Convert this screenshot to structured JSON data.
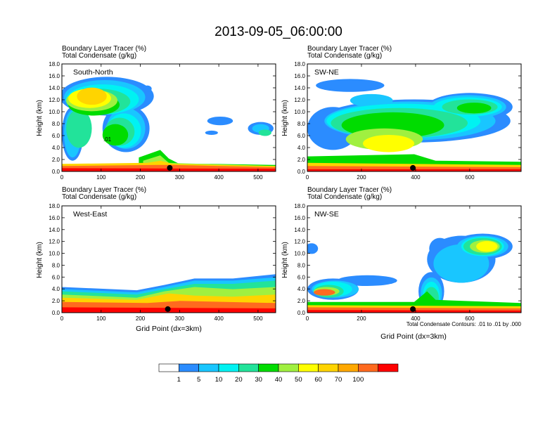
{
  "title": "2013-09-05_06:00:00",
  "colors": {
    "levels": [
      "#ffffff",
      "#2b8cff",
      "#19c6ff",
      "#00f2f2",
      "#22e39a",
      "#00dc00",
      "#a0f040",
      "#ffff00",
      "#ffd400",
      "#ffa800",
      "#ff6a1f",
      "#ff0000"
    ],
    "black": "#000000"
  },
  "chart_data": [
    {
      "type": "heatmap",
      "label": "South-North",
      "subtitle_1": "Boundary Layer Tracer   (%)",
      "subtitle_2": "Total Condensate   (g/kg)",
      "ylabel": "Height (km)",
      "xlabel": "",
      "xlim": [
        0,
        545
      ],
      "ylim": [
        0,
        18
      ],
      "xticks": [
        0,
        100,
        200,
        300,
        400,
        500
      ],
      "yticks": [
        "0.0",
        "2.0",
        "4.0",
        "6.0",
        "8.0",
        "10.0",
        "12.0",
        "14.0",
        "16.0",
        "18.0"
      ],
      "contour_label": ".01",
      "marker": [
        275,
        0.6
      ]
    },
    {
      "type": "heatmap",
      "label": "SW-NE",
      "subtitle_1": "Boundary Layer Tracer   (%)",
      "subtitle_2": "Total Condensate   (g/kg)",
      "ylabel": "Height (km)",
      "xlabel": "",
      "xlim": [
        0,
        790
      ],
      "ylim": [
        0,
        18
      ],
      "xticks": [
        0,
        200,
        400,
        600
      ],
      "yticks": [
        "0.0",
        "2.0",
        "4.0",
        "6.0",
        "8.0",
        "10.0",
        "12.0",
        "14.0",
        "16.0",
        "18.0"
      ],
      "marker": [
        390,
        0.6
      ]
    },
    {
      "type": "heatmap",
      "label": "West-East",
      "subtitle_1": "Boundary Layer Tracer   (%)",
      "subtitle_2": "Total Condensate   (g/kg)",
      "ylabel": "Height (km)",
      "xlabel": "Grid Point (dx=3km)",
      "xlim": [
        0,
        545
      ],
      "ylim": [
        0,
        18
      ],
      "xticks": [
        0,
        100,
        200,
        300,
        400,
        500
      ],
      "yticks": [
        "0.0",
        "2.0",
        "4.0",
        "6.0",
        "8.0",
        "10.0",
        "12.0",
        "14.0",
        "16.0",
        "18.0"
      ],
      "marker": [
        270,
        0.6
      ]
    },
    {
      "type": "heatmap",
      "label": "NW-SE",
      "subtitle_1": "Boundary Layer Tracer   (%)",
      "subtitle_2": "Total Condensate   (g/kg)",
      "ylabel": "Height (km)",
      "xlabel": "Grid Point (dx=3km)",
      "note": "Total Condensate Contours: .01 to .01 by .000",
      "xlim": [
        0,
        790
      ],
      "ylim": [
        0,
        18
      ],
      "xticks": [
        0,
        200,
        400,
        600
      ],
      "yticks": [
        "0.0",
        "2.0",
        "4.0",
        "6.0",
        "8.0",
        "10.0",
        "12.0",
        "14.0",
        "16.0",
        "18.0"
      ],
      "marker": [
        390,
        0.6
      ]
    }
  ],
  "colorbar": {
    "labels": [
      "1",
      "5",
      "10",
      "20",
      "30",
      "40",
      "50",
      "60",
      "70",
      "100"
    ]
  }
}
